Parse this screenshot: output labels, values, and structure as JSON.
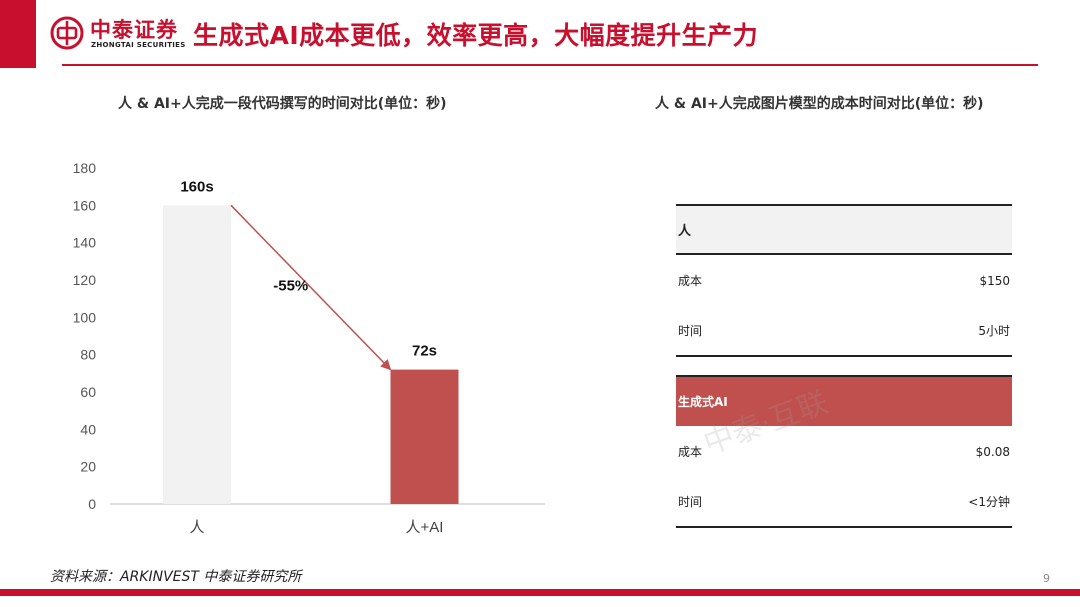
{
  "header": {
    "logo_cn": "中泰证券",
    "logo_en": "ZHONGTAI SECURITIES",
    "title": "生成式AI成本更低，效率更高，大幅度提升生产力",
    "accent_color": "#c8102e"
  },
  "left_panel": {
    "title": "人 & AI+人完成一段代码撰写的时间对比(单位：秒)"
  },
  "right_panel": {
    "title": "人 & AI+人完成图片模型的成本时间对比(单位：秒)",
    "groups": [
      {
        "label": "人",
        "rows": [
          {
            "label": "成本",
            "value": "$150"
          },
          {
            "label": "时间",
            "value": "5小时"
          }
        ]
      },
      {
        "label": "生成式AI",
        "rows": [
          {
            "label": "成本",
            "value": "$0.08"
          },
          {
            "label": "时间",
            "value": "<1分钟"
          }
        ]
      }
    ]
  },
  "chart_data": {
    "type": "bar",
    "categories": [
      "人",
      "人+AI"
    ],
    "values": [
      160,
      72
    ],
    "data_labels": [
      "160s",
      "72s"
    ],
    "bar_colors": [
      "#f2f2f2",
      "#c0504d"
    ],
    "ylim": [
      0,
      180
    ],
    "yticks": [
      0,
      20,
      40,
      60,
      80,
      100,
      120,
      140,
      160,
      180
    ],
    "annotation": "-55%",
    "arrow_color": "#c0504d",
    "grid": false
  },
  "footer": {
    "source": "资料来源：ARKINVEST 中泰证券研究所",
    "page_number": "9"
  },
  "watermark": "中泰·互联"
}
